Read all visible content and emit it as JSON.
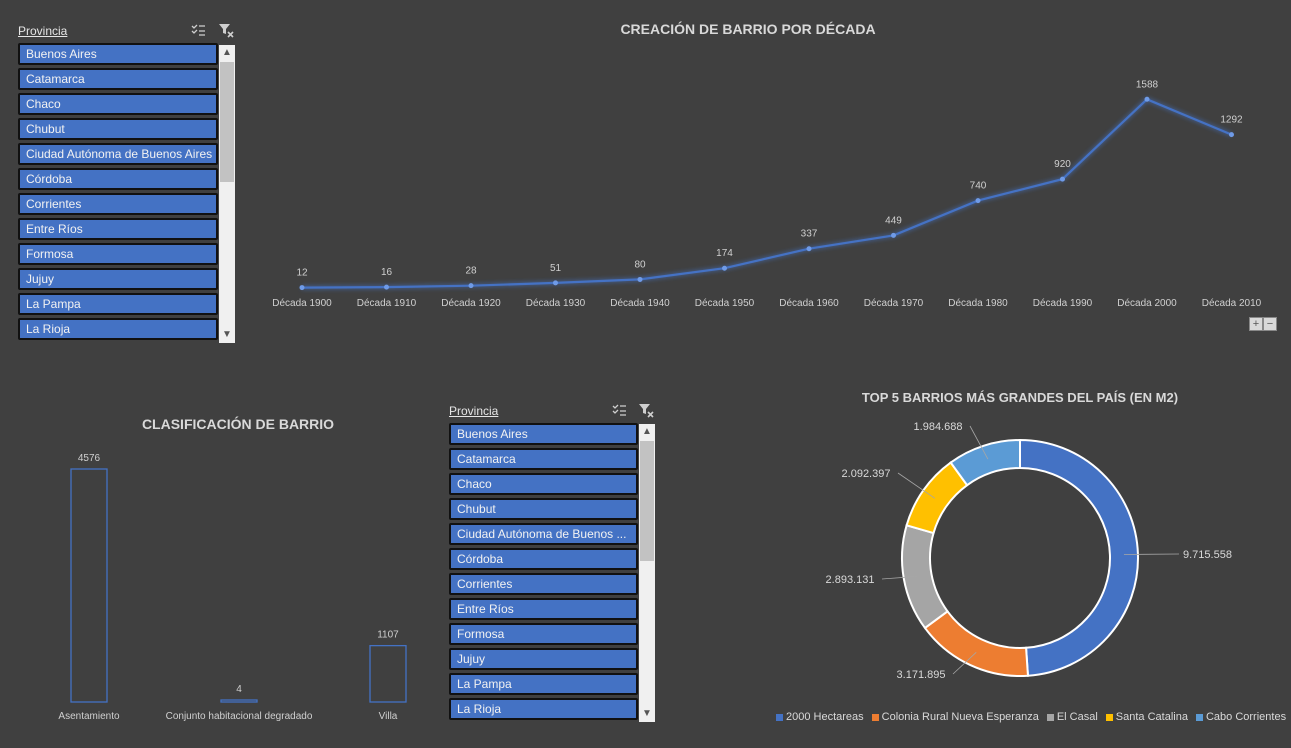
{
  "slicer_top": {
    "title": "Provincia",
    "items": [
      "Buenos Aires",
      "Catamarca",
      "Chaco",
      "Chubut",
      "Ciudad Autónoma de Buenos Aires",
      "Córdoba",
      "Corrientes",
      "Entre Ríos",
      "Formosa",
      "Jujuy",
      "La Pampa",
      "La Rioja"
    ]
  },
  "slicer_bottom": {
    "title": "Provincia",
    "items": [
      "Buenos Aires",
      "Catamarca",
      "Chaco",
      "Chubut",
      "Ciudad Autónoma de Buenos ...",
      "Córdoba",
      "Corrientes",
      "Entre Ríos",
      "Formosa",
      "Jujuy",
      "La Pampa",
      "La Rioja"
    ]
  },
  "zoom": {
    "plus": "+",
    "minus": "−"
  },
  "colors": {
    "background": "#404040",
    "accent": "#4472c4",
    "orange": "#ed7d31",
    "gray": "#a5a5a5",
    "yellow": "#ffc000",
    "lightblue": "#5b9bd5"
  },
  "chart_data": [
    {
      "type": "line",
      "title": "CREACIÓN DE BARRIO POR DÉCADA",
      "categories": [
        "Década 1900",
        "Década 1910",
        "Década 1920",
        "Década 1930",
        "Década 1940",
        "Década 1950",
        "Década 1960",
        "Década 1970",
        "Década 1980",
        "Década 1990",
        "Década 2000",
        "Década 2010"
      ],
      "values": [
        12,
        16,
        28,
        51,
        80,
        174,
        337,
        449,
        740,
        920,
        1588,
        1292
      ],
      "ylim": [
        0,
        1900
      ],
      "grid": false,
      "data_labels": true
    },
    {
      "type": "bar",
      "title": "CLASIFICACIÓN DE BARRIO",
      "categories": [
        "Asentamiento",
        "Conjunto habitacional degradado",
        "Villa"
      ],
      "values": [
        4576,
        4,
        1107
      ],
      "ylim": [
        0,
        4576
      ],
      "grid": false,
      "data_labels": true
    },
    {
      "type": "pie",
      "title": "TOP 5 BARRIOS MÁS GRANDES DEL PAÍS (EN M2)",
      "labels": [
        "2000 Hectareas",
        "Colonia Rural Nueva Esperanza",
        "El Casal",
        "Santa Catalina",
        "Cabo Corrientes"
      ],
      "values": [
        9715558,
        3171895,
        2893131,
        2092397,
        1984688
      ],
      "value_labels": [
        "9.715.558",
        "3.171.895",
        "2.893.131",
        "2.092.397",
        "1.984.688"
      ],
      "colors": [
        "#4472c4",
        "#ed7d31",
        "#a5a5a5",
        "#ffc000",
        "#5b9bd5"
      ],
      "legend": "bottom"
    }
  ]
}
